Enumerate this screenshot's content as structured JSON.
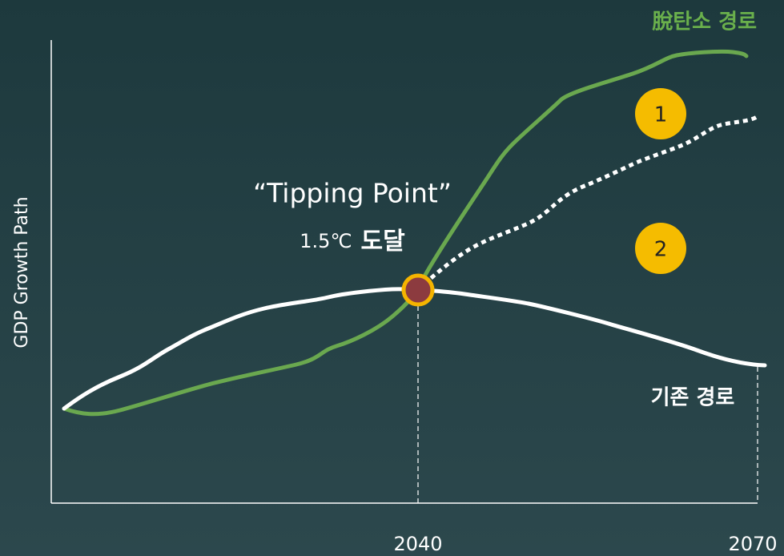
{
  "labels": {
    "decarbonization_path": "脫탄소 경로",
    "existing_path": "기존 경로",
    "tipping_point": "“Tipping Point”",
    "temperature": "1.5℃",
    "reached": "도달",
    "marker_1": "1",
    "marker_2": "2",
    "y_axis": "GDP Growth Path",
    "x_2040": "2040",
    "x_2070": "2070"
  }
}
